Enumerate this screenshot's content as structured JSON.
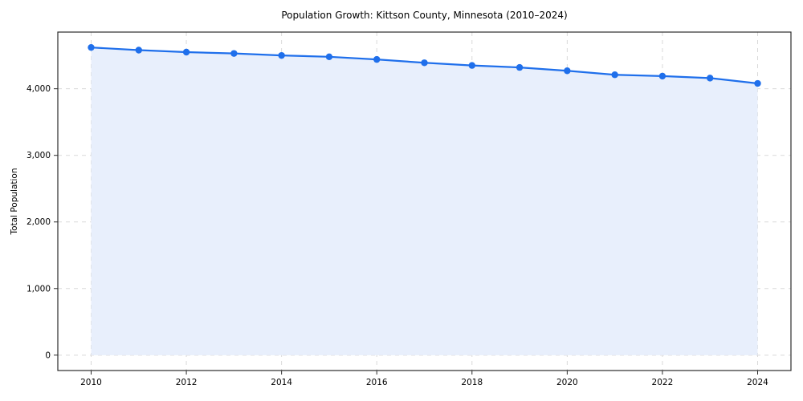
{
  "chart_data": {
    "type": "line",
    "title": "Population Growth: Kittson County, Minnesota (2010–2024)",
    "xlabel": "",
    "ylabel": "Total Population",
    "x": [
      2010,
      2011,
      2012,
      2013,
      2014,
      2015,
      2016,
      2017,
      2018,
      2019,
      2020,
      2021,
      2022,
      2023,
      2024
    ],
    "series": [
      {
        "name": "Total Population",
        "values": [
          4620,
          4580,
          4550,
          4530,
          4500,
          4480,
          4440,
          4390,
          4350,
          4320,
          4270,
          4210,
          4190,
          4160,
          4080
        ]
      }
    ],
    "x_ticks": [
      2010,
      2012,
      2014,
      2016,
      2018,
      2020,
      2022,
      2024
    ],
    "y_ticks": [
      0,
      1000,
      2000,
      3000,
      4000
    ],
    "y_tick_labels": [
      "0",
      "1,000",
      "2,000",
      "3,000",
      "4,000"
    ],
    "xlim": [
      2009.3,
      2024.7
    ],
    "ylim": [
      -231,
      4851
    ],
    "grid": true,
    "legend_position": "none",
    "colors": {
      "line": "#1f6feb",
      "marker": "#1f6feb",
      "fill": "#e8effc",
      "grid": "#d9d9d9",
      "axis_frame": "#2b2b2b",
      "tick_text": "#000000",
      "background": "#ffffff"
    }
  }
}
